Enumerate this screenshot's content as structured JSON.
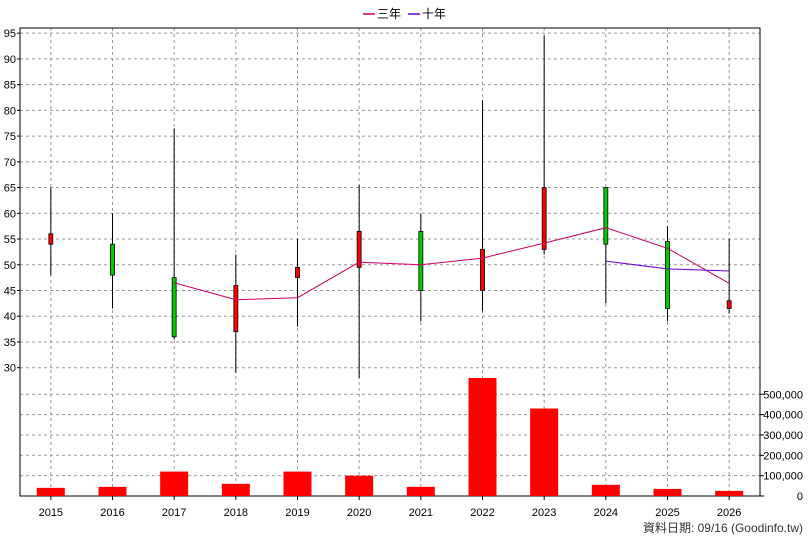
{
  "chart_data": {
    "type": "candlestick",
    "legend": {
      "placement": "top-center",
      "items": [
        {
          "name": "三年",
          "color": "#cc0066"
        },
        {
          "name": "十年",
          "color": "#6600cc"
        }
      ]
    },
    "categories": [
      "2015",
      "2016",
      "2017",
      "2018",
      "2019",
      "2020",
      "2021",
      "2022",
      "2023",
      "2024",
      "2025",
      "2026"
    ],
    "price_axis": {
      "ylim": [
        28,
        96
      ],
      "ticks": [
        30,
        35,
        40,
        45,
        50,
        55,
        60,
        65,
        70,
        75,
        80,
        85,
        90,
        95
      ],
      "side": "left"
    },
    "volume_axis": {
      "ylim": [
        0,
        580000
      ],
      "ticks": [
        0,
        100000,
        200000,
        300000,
        400000,
        500000
      ],
      "tick_labels": [
        "0",
        "100,000",
        "200,000",
        "300,000",
        "400,000",
        "500,000"
      ],
      "side": "right"
    },
    "grid": true,
    "candles": [
      {
        "year": "2015",
        "open": 54,
        "close": 56,
        "high": 65,
        "low": 48,
        "direction": "up"
      },
      {
        "year": "2016",
        "open": 54,
        "close": 48,
        "high": 60,
        "low": 41.5,
        "direction": "down"
      },
      {
        "year": "2017",
        "open": 47.5,
        "close": 36,
        "high": 76.5,
        "low": 35.5,
        "direction": "down"
      },
      {
        "year": "2018",
        "open": 37,
        "close": 46,
        "high": 52,
        "low": 29,
        "direction": "up"
      },
      {
        "year": "2019",
        "open": 47.5,
        "close": 49.5,
        "high": 55,
        "low": 38,
        "direction": "up"
      },
      {
        "year": "2020",
        "open": 49.5,
        "close": 56.5,
        "high": 65.5,
        "low": 28,
        "direction": "up"
      },
      {
        "year": "2021",
        "open": 56.5,
        "close": 45,
        "high": 60,
        "low": 39,
        "direction": "down"
      },
      {
        "year": "2022",
        "open": 45,
        "close": 53,
        "high": 82,
        "low": 41,
        "direction": "up"
      },
      {
        "year": "2023",
        "open": 53,
        "close": 65,
        "high": 94.5,
        "low": 52,
        "direction": "up"
      },
      {
        "year": "2024",
        "open": 65,
        "close": 54,
        "high": 65,
        "low": 42.5,
        "direction": "down"
      },
      {
        "year": "2025",
        "open": 54.5,
        "close": 41.5,
        "high": 57.5,
        "low": 39,
        "direction": "down"
      },
      {
        "year": "2026",
        "open": 41.5,
        "close": 43,
        "high": 55,
        "low": 40.5,
        "direction": "up"
      }
    ],
    "series": [
      {
        "name": "三年",
        "color": "#cc0066",
        "points": [
          [
            "2017",
            46.5
          ],
          [
            "2018",
            43.2
          ],
          [
            "2019",
            43.6
          ],
          [
            "2020",
            50.5
          ],
          [
            "2021",
            50
          ],
          [
            "2022",
            51.3
          ],
          [
            "2023",
            54.2
          ],
          [
            "2024",
            57.2
          ],
          [
            "2025",
            53.2
          ],
          [
            "2026",
            46.4
          ]
        ]
      },
      {
        "name": "十年",
        "color": "#6600cc",
        "points": [
          [
            "2024",
            50.7
          ],
          [
            "2025",
            49.2
          ],
          [
            "2026",
            48.8
          ]
        ]
      }
    ],
    "volume": [
      {
        "year": "2015",
        "value": 40000
      },
      {
        "year": "2016",
        "value": 45000
      },
      {
        "year": "2017",
        "value": 120000
      },
      {
        "year": "2018",
        "value": 60000
      },
      {
        "year": "2019",
        "value": 120000
      },
      {
        "year": "2020",
        "value": 100000
      },
      {
        "year": "2021",
        "value": 45000
      },
      {
        "year": "2022",
        "value": 580000
      },
      {
        "year": "2023",
        "value": 430000
      },
      {
        "year": "2024",
        "value": 55000
      },
      {
        "year": "2025",
        "value": 35000
      },
      {
        "year": "2026",
        "value": 25000
      }
    ],
    "colors": {
      "up": "#ff0000",
      "down": "#00cc00",
      "volume": "#ff0000",
      "grid": "#999999"
    }
  },
  "footer": {
    "text": "資料日期: 09/16  (Goodinfo.tw)"
  }
}
